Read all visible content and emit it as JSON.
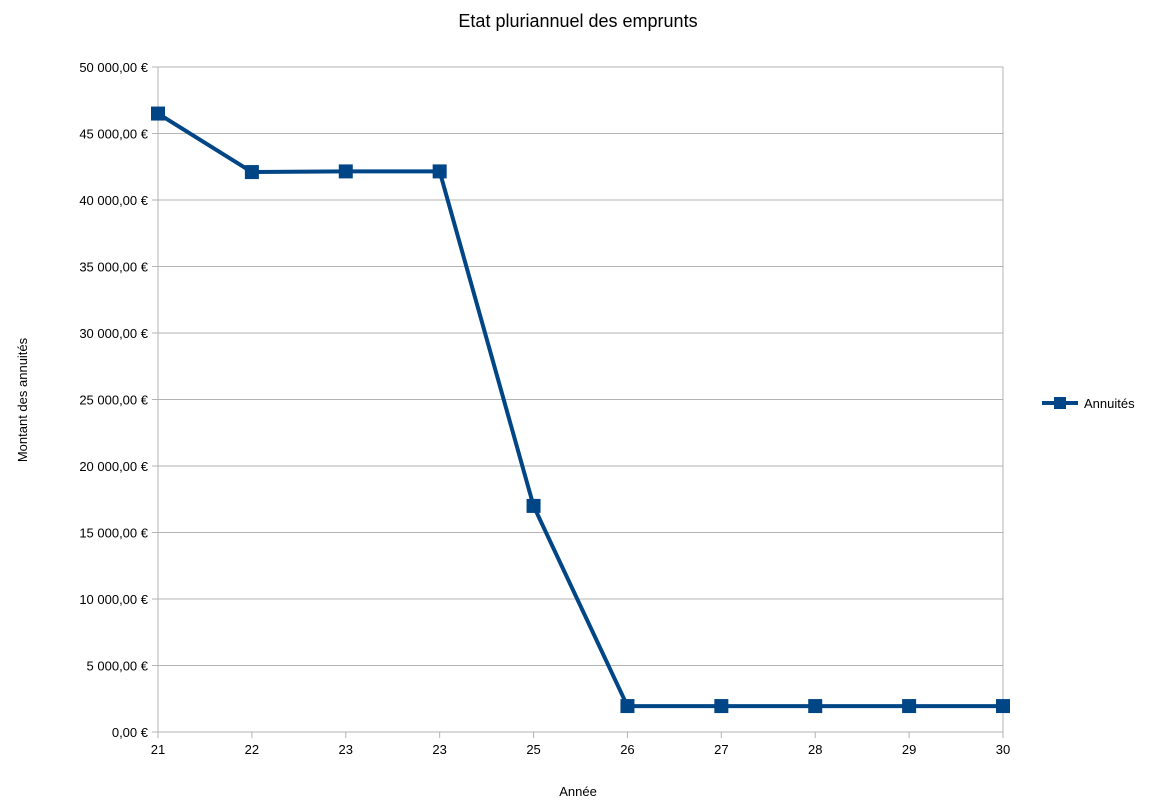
{
  "chart_data": {
    "type": "line",
    "title": "Etat pluriannuel des emprunts",
    "xlabel": "Année",
    "ylabel": "Montant des annuités",
    "categories": [
      "21",
      "22",
      "23",
      "23",
      "25",
      "26",
      "27",
      "28",
      "29",
      "30"
    ],
    "series": [
      {
        "name": "Annuités",
        "values": [
          46500,
          42100,
          42150,
          42150,
          17000,
          1950,
          1950,
          1950,
          1950,
          1950
        ]
      }
    ],
    "ylim": [
      0,
      50000
    ],
    "yticks": [
      0,
      5000,
      10000,
      15000,
      20000,
      25000,
      30000,
      35000,
      40000,
      45000,
      50000
    ],
    "ytick_labels": [
      "0,00 €",
      "5 000,00 €",
      "10 000,00 €",
      "15 000,00 €",
      "20 000,00 €",
      "25 000,00 €",
      "30 000,00 €",
      "35 000,00 €",
      "40 000,00 €",
      "45 000,00 €",
      "50 000,00 €"
    ],
    "grid": true,
    "legend_position": "right",
    "colors": {
      "series": "#004586",
      "grid": "#b3b3b3"
    }
  }
}
